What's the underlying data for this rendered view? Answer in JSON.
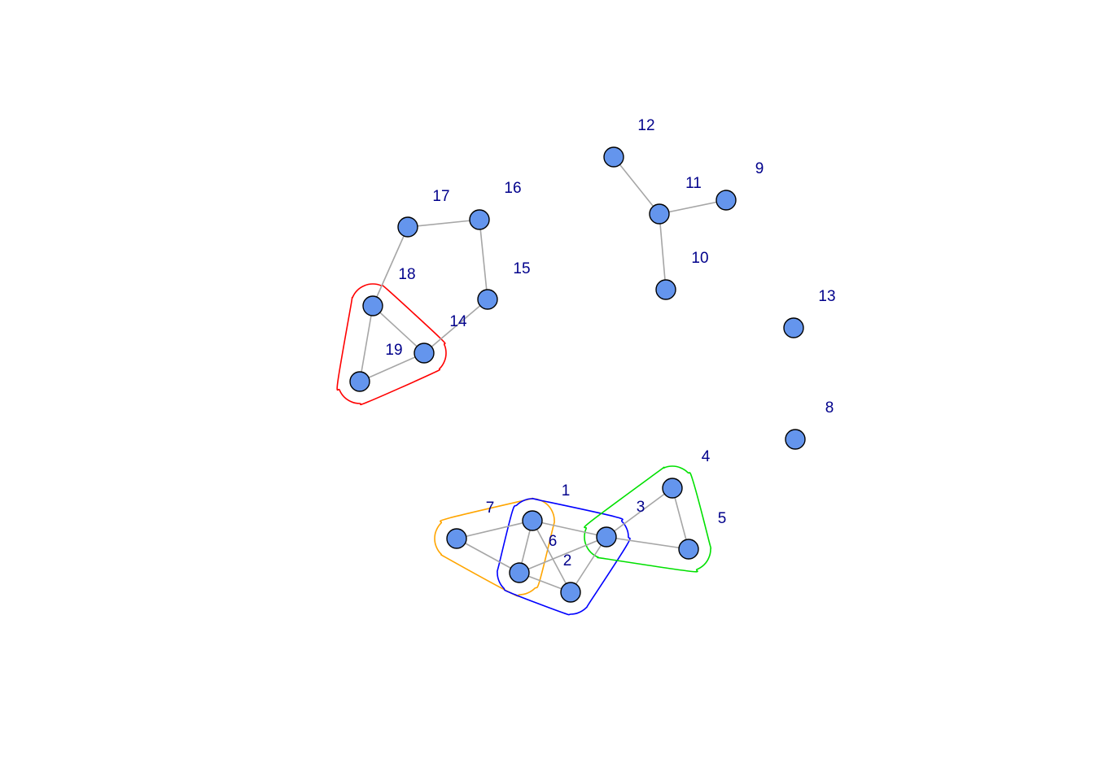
{
  "graph": {
    "nodes": [
      {
        "id": "1",
        "label": "1"
      },
      {
        "id": "2",
        "label": "2"
      },
      {
        "id": "3",
        "label": "3"
      },
      {
        "id": "4",
        "label": "4"
      },
      {
        "id": "5",
        "label": "5"
      },
      {
        "id": "6",
        "label": "6"
      },
      {
        "id": "7",
        "label": "7"
      },
      {
        "id": "8",
        "label": "8"
      },
      {
        "id": "9",
        "label": "9"
      },
      {
        "id": "10",
        "label": "10"
      },
      {
        "id": "11",
        "label": "11"
      },
      {
        "id": "12",
        "label": "12"
      },
      {
        "id": "13",
        "label": "13"
      },
      {
        "id": "14",
        "label": "14"
      },
      {
        "id": "15",
        "label": "15"
      },
      {
        "id": "16",
        "label": "16"
      },
      {
        "id": "17",
        "label": "17"
      },
      {
        "id": "18",
        "label": "18"
      },
      {
        "id": "19",
        "label": "19"
      }
    ],
    "edges": [
      [
        "6",
        "1"
      ],
      [
        "6",
        "2"
      ],
      [
        "6",
        "3"
      ],
      [
        "6",
        "7"
      ],
      [
        "1",
        "7"
      ],
      [
        "1",
        "3"
      ],
      [
        "1",
        "2"
      ],
      [
        "2",
        "3"
      ],
      [
        "3",
        "5"
      ],
      [
        "3",
        "4"
      ],
      [
        "4",
        "5"
      ],
      [
        "11",
        "12"
      ],
      [
        "11",
        "9"
      ],
      [
        "11",
        "10"
      ],
      [
        "17",
        "16"
      ],
      [
        "16",
        "15"
      ],
      [
        "15",
        "14"
      ],
      [
        "17",
        "18"
      ],
      [
        "18",
        "14"
      ],
      [
        "18",
        "19"
      ],
      [
        "19",
        "14"
      ]
    ],
    "groups": [
      {
        "members": [
          "18",
          "19",
          "14"
        ],
        "color": "#ff0000"
      },
      {
        "members": [
          "7",
          "1",
          "6"
        ],
        "color": "#ffa500"
      },
      {
        "members": [
          "1",
          "6",
          "2",
          "3"
        ],
        "color": "#0000ff"
      },
      {
        "members": [
          "3",
          "4",
          "5"
        ],
        "color": "#00e000"
      }
    ],
    "node_color": "#6495ed",
    "edge_color": "#a6a6a6",
    "label_color": "#00008b"
  }
}
